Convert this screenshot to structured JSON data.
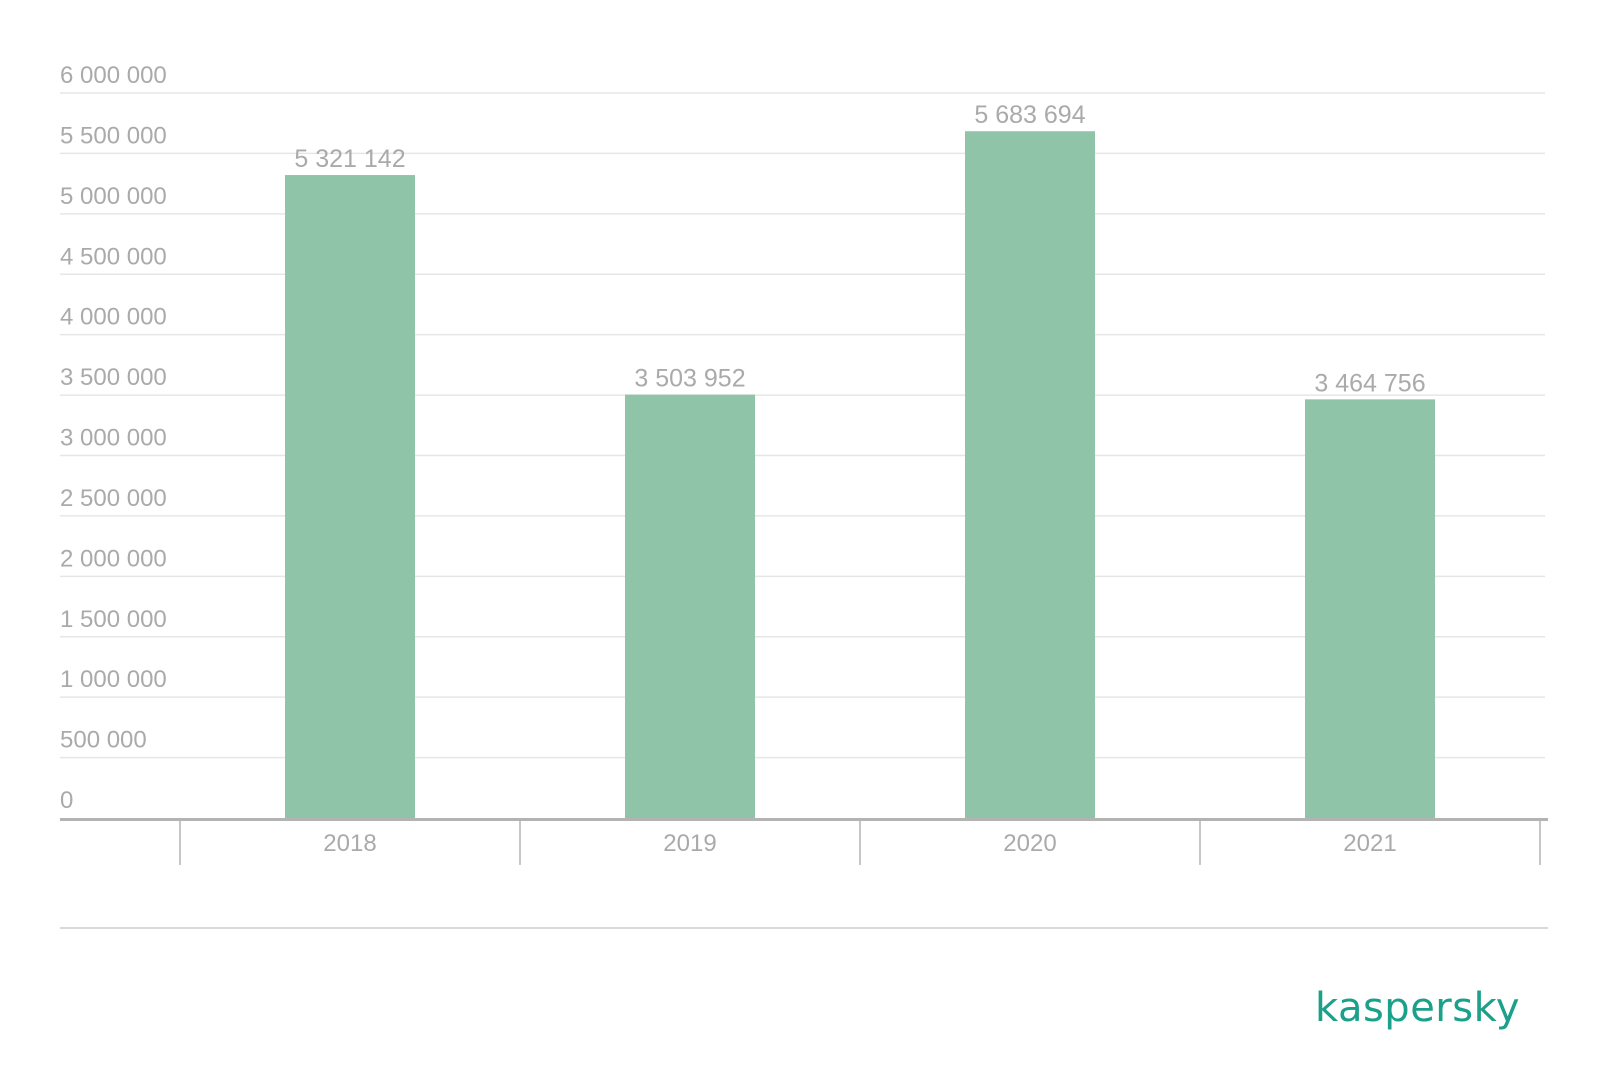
{
  "chart_data": {
    "type": "bar",
    "categories": [
      "2018",
      "2019",
      "2020",
      "2021"
    ],
    "values": [
      5321142,
      3503952,
      5683694,
      3464756
    ],
    "value_labels": [
      "5 321 142",
      "3 503 952",
      "5 683 694",
      "3 464 756"
    ],
    "ylim": [
      0,
      6000000
    ],
    "yticks": [
      0,
      500000,
      1000000,
      1500000,
      2000000,
      2500000,
      3000000,
      3500000,
      4000000,
      4500000,
      5000000,
      5500000,
      6000000
    ],
    "ytick_labels": [
      "0",
      "500 000",
      "1 000 000",
      "1 500 000",
      "2 000 000",
      "2 500 000",
      "3 000 000",
      "3 500 000",
      "4 000 000",
      "4 500 000",
      "5 000 000",
      "5 500 000",
      "6 000 000"
    ],
    "title": "",
    "xlabel": "",
    "ylabel": "",
    "grid": true,
    "legend": "none",
    "bar_color": "#90c4a8",
    "grid_color": "#e6e6e6",
    "axis_color": "#b3b3b3",
    "label_color": "#aaaaaa"
  },
  "brand": {
    "logo_text": "kaspersky",
    "color": "#1ba08a"
  }
}
